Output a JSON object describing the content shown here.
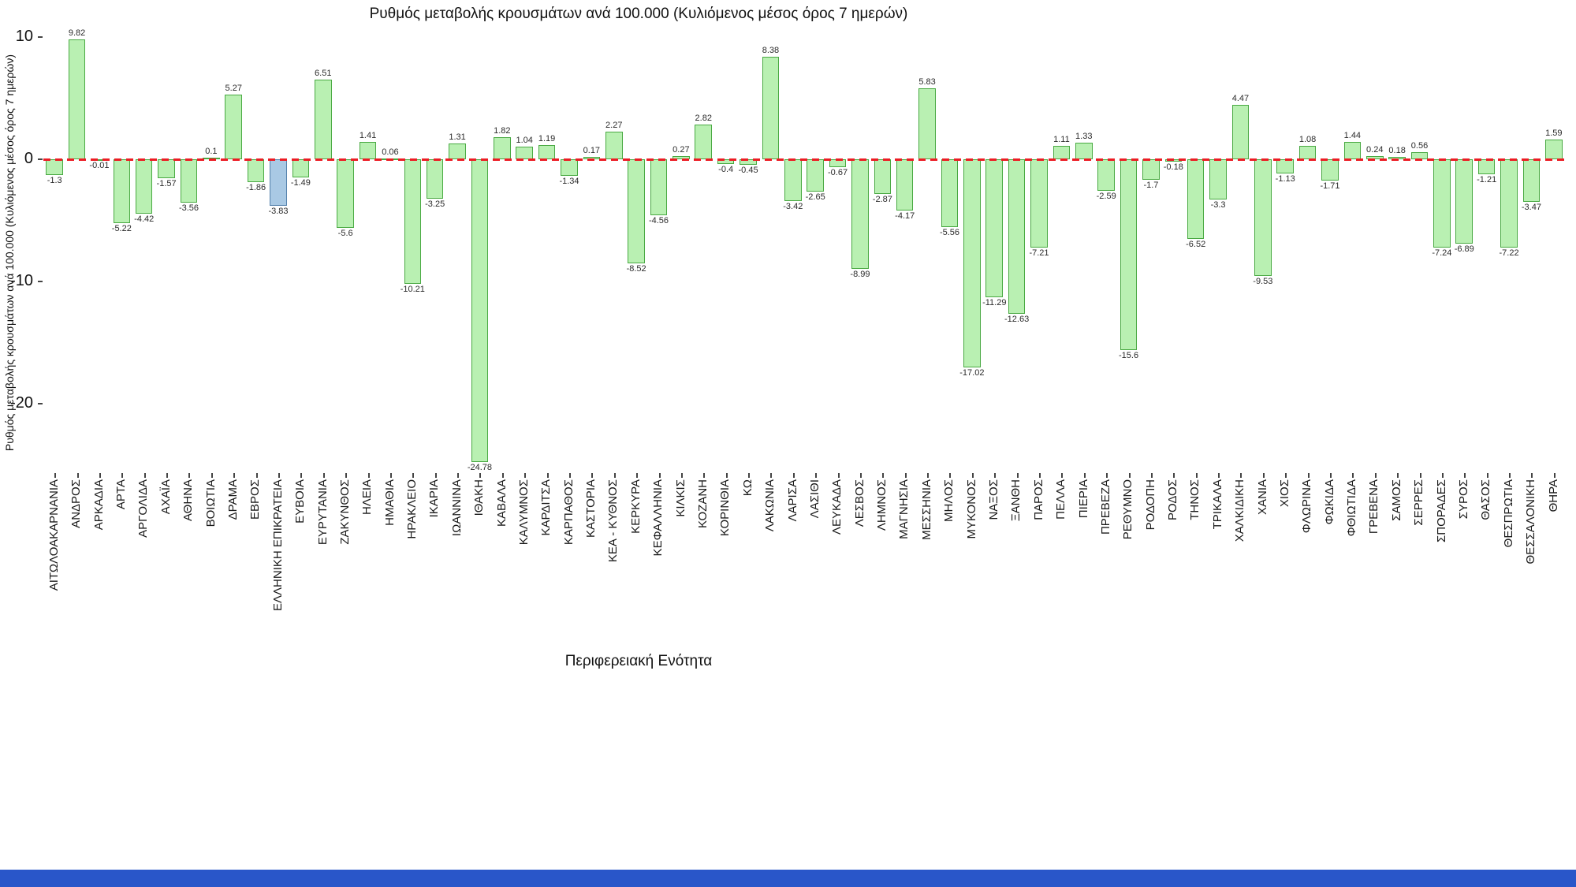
{
  "chart_data": {
    "type": "bar",
    "title": "Ρυθμός μεταβολής κρουσμάτων ανά 100.000 (Κυλιόμενος μέσος όρος 7 ημερών)",
    "xlabel": "Περιφερειακή Ενότητα",
    "ylabel": "Ρυθμός μεταβολής κρουσμάτων ανά 100.000 (Κυλιόμενος μέσος όρος 7 ημερών)",
    "ylim": [
      -26,
      11
    ],
    "yticks": [
      10,
      0,
      -10,
      -20
    ],
    "grid": false,
    "legend": "none",
    "zero_line": {
      "value": 0,
      "style": "dashed"
    },
    "highlight_category": "ΕΛΛΗΝΙΚΗ ΕΠΙΚΡΑΤΕΙΑ",
    "categories": [
      "ΑΙΤΩΛΟΑΚΑΡΝΑΝΙΑ",
      "ΑΝΔΡΟΣ",
      "ΑΡΚΑΔΙΑ",
      "ΑΡΤΑ",
      "ΑΡΓΟΛΙΔΑ",
      "ΑΧΑΪΑ",
      "ΑΘΗΝΑ",
      "ΒΟΙΩΤΙΑ",
      "ΔΡΑΜΑ",
      "ΕΒΡΟΣ",
      "ΕΛΛΗΝΙΚΗ ΕΠΙΚΡΑΤΕΙΑ",
      "ΕΥΒΟΙΑ",
      "ΕΥΡΥΤΑΝΙΑ",
      "ΖΑΚΥΝΘΟΣ",
      "ΗΛΕΙΑ",
      "ΗΜΑΘΙΑ",
      "ΗΡΑΚΛΕΙΟ",
      "ΙΚΑΡΙΑ",
      "ΙΩΑΝΝΙΝΑ",
      "ΙΘΑΚΗ",
      "ΚΑΒΑΛΑ",
      "ΚΑΛΥΜΝΟΣ",
      "ΚΑΡΔΙΤΣΑ",
      "ΚΑΡΠΑΘΟΣ",
      "ΚΑΣΤΟΡΙΑ",
      "ΚΕΑ - ΚΥΘΝΟΣ",
      "ΚΕΡΚΥΡΑ",
      "ΚΕΦΑΛΛΗΝΙΑ",
      "ΚΙΛΚΙΣ",
      "ΚΟΖΑΝΗ",
      "ΚΟΡΙΝΘΙΑ",
      "ΚΩ",
      "ΛΑΚΩΝΙΑ",
      "ΛΑΡΙΣΑ",
      "ΛΑΣΙΘΙ",
      "ΛΕΥΚΑΔΑ",
      "ΛΕΣΒΟΣ",
      "ΛΗΜΝΟΣ",
      "ΜΑΓΝΗΣΙΑ",
      "ΜΕΣΣΗΝΙΑ",
      "ΜΗΛΟΣ",
      "ΜΥΚΟΝΟΣ",
      "ΝΑΞΟΣ",
      "ΞΑΝΘΗ",
      "ΠΑΡΟΣ",
      "ΠΕΛΛΑ",
      "ΠΙΕΡΙΑ",
      "ΠΡΕΒΕΖΑ",
      "ΡΕΘΥΜΝΟ",
      "ΡΟΔΟΠΗ",
      "ΡΟΔΟΣ",
      "ΤΗΝΟΣ",
      "ΤΡΙΚΑΛΑ",
      "ΧΑΛΚΙΔΙΚΗ",
      "ΧΑΝΙΑ",
      "ΧΙΟΣ",
      "ΦΛΩΡΙΝΑ",
      "ΦΩΚΙΔΑ",
      "ΦΘΙΩΤΙΔΑ",
      "ΓΡΕΒΕΝΑ",
      "ΣΑΜΟΣ",
      "ΣΕΡΡΕΣ",
      "ΣΠΟΡΑΔΕΣ",
      "ΣΥΡΟΣ",
      "ΘΑΣΟΣ",
      "ΘΕΣΠΡΩΤΙΑ",
      "ΘΕΣΣΑΛΟΝΙΚΗ",
      "ΘΗΡΑ"
    ],
    "values": [
      -1.3,
      9.82,
      -0.01,
      -5.22,
      -4.42,
      -1.57,
      -3.56,
      0.1,
      5.27,
      -1.86,
      -3.83,
      -1.49,
      6.51,
      -5.6,
      1.41,
      0.06,
      -10.21,
      -3.25,
      1.31,
      -24.78,
      1.82,
      1.04,
      1.19,
      -1.34,
      0.17,
      2.27,
      -8.52,
      -4.56,
      0.27,
      2.82,
      -0.4,
      -0.45,
      8.38,
      -3.42,
      -2.65,
      -0.67,
      -8.99,
      -2.87,
      -4.17,
      5.83,
      -5.56,
      -17.02,
      -11.29,
      -12.63,
      -7.21,
      1.11,
      1.33,
      -2.59,
      -15.6,
      -1.7,
      -0.18,
      -6.52,
      -3.3,
      4.47,
      -9.53,
      -1.13,
      1.08,
      -1.71,
      1.44,
      0.24,
      0.18,
      0.56,
      -7.24,
      -6.89,
      -1.21,
      -7.22,
      -3.47,
      1.59
    ],
    "colors": {
      "bar_fill": "#b9f0b2",
      "bar_border": "#49a942",
      "highlight_fill": "#a9c9e4",
      "highlight_border": "#5380ab",
      "zero_line": "#ec1c24",
      "text": "#111111"
    }
  },
  "taskbar": {
    "color": "#2956c9"
  }
}
